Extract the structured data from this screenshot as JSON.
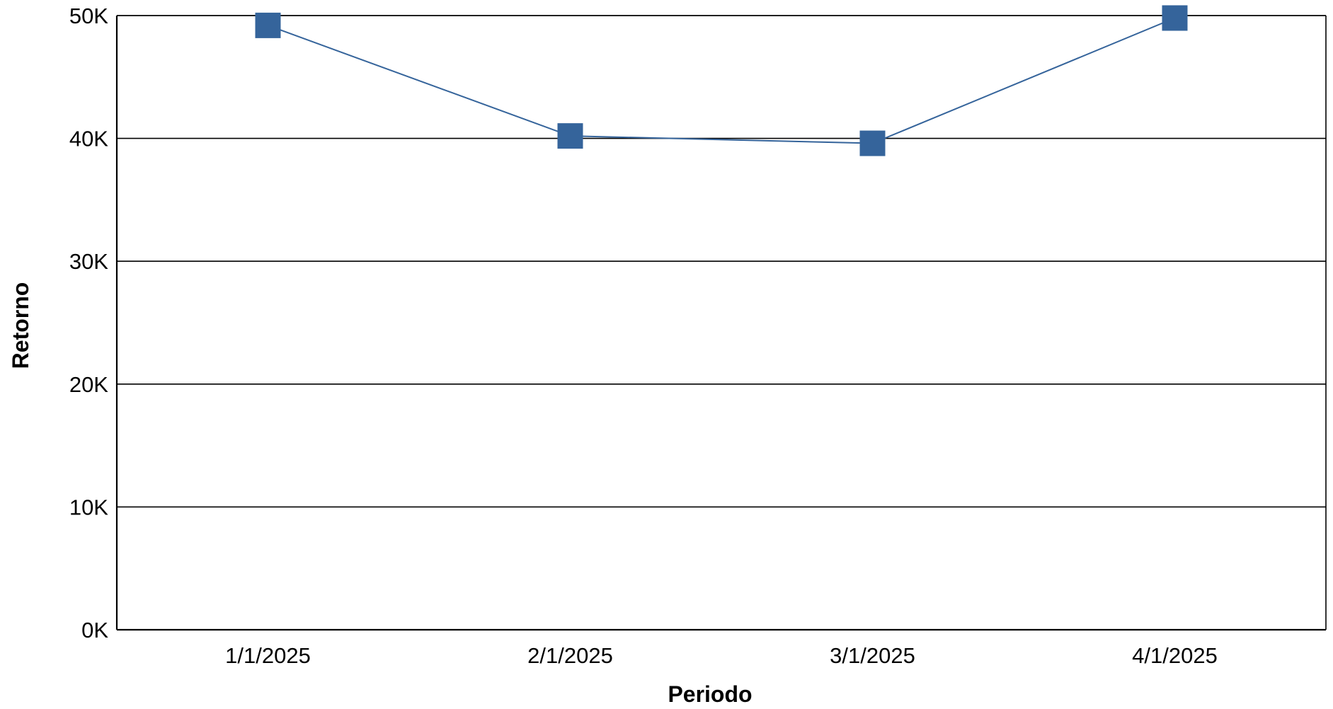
{
  "chart_data": {
    "type": "line",
    "title": "",
    "xlabel": "Periodo",
    "ylabel": "Retorno",
    "categories": [
      "1/1/2025",
      "2/1/2025",
      "3/1/2025",
      "4/1/2025"
    ],
    "series": [
      {
        "values": [
          49200,
          40200,
          39600,
          49800
        ]
      }
    ],
    "ylim": [
      0,
      50000
    ],
    "yticks": [
      0,
      10000,
      20000,
      30000,
      40000,
      50000
    ],
    "ytick_labels": [
      "0K",
      "10K",
      "20K",
      "30K",
      "40K",
      "50K"
    ],
    "grid": true,
    "legend": "none",
    "marker": "square",
    "colors": {
      "series": "#35649b",
      "grid": "#000000",
      "axis": "#000000"
    }
  }
}
